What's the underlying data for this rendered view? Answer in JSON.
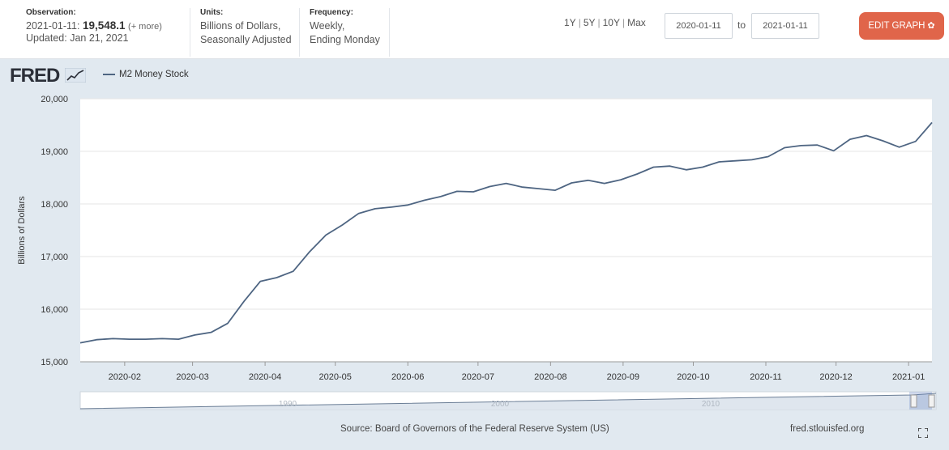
{
  "header": {
    "observation_label": "Observation:",
    "observation_date": "2021-01-11:",
    "observation_value": "19,548.1",
    "observation_more": "(+ more)",
    "updated": "Updated: Jan 21, 2021",
    "units_label": "Units:",
    "units_line1": "Billions of Dollars,",
    "units_line2": "Seasonally Adjusted",
    "frequency_label": "Frequency:",
    "frequency_line1": "Weekly,",
    "frequency_line2": "Ending Monday"
  },
  "range_buttons": [
    "1Y",
    "5Y",
    "10Y",
    "Max"
  ],
  "date_from": "2020-01-11",
  "date_to": "2021-01-11",
  "to_label": "to",
  "edit_button": "EDIT GRAPH",
  "logo_text": "FRED",
  "source": "Source: Board of Governors of the Federal Reserve System (US)",
  "site": "fred.stlouisfed.org",
  "colors": {
    "line": "#4e6582",
    "edit_button": "#e0654a",
    "plot_bg": "#ffffff",
    "page_bg": "#e1e9f0"
  },
  "chart_data": {
    "type": "line",
    "title": "",
    "xlabel": "",
    "ylabel": "Billions of Dollars",
    "ylim": [
      15000,
      20000
    ],
    "xlim": [
      "2020-01-13",
      "2021-01-11"
    ],
    "yticks": [
      "15,000",
      "16,000",
      "17,000",
      "18,000",
      "19,000",
      "20,000"
    ],
    "xticks": [
      {
        "date": "2020-02-01",
        "label": "2020-02"
      },
      {
        "date": "2020-03-01",
        "label": "2020-03"
      },
      {
        "date": "2020-04-01",
        "label": "2020-04"
      },
      {
        "date": "2020-05-01",
        "label": "2020-05"
      },
      {
        "date": "2020-06-01",
        "label": "2020-06"
      },
      {
        "date": "2020-07-01",
        "label": "2020-07"
      },
      {
        "date": "2020-08-01",
        "label": "2020-08"
      },
      {
        "date": "2020-09-01",
        "label": "2020-09"
      },
      {
        "date": "2020-10-01",
        "label": "2020-10"
      },
      {
        "date": "2020-11-01",
        "label": "2020-11"
      },
      {
        "date": "2020-12-01",
        "label": "2020-12"
      },
      {
        "date": "2021-01-01",
        "label": "2021-01"
      }
    ],
    "grid": true,
    "legend": "top-left",
    "series": [
      {
        "name": "M2 Money Stock",
        "x": [
          "2020-01-13",
          "2020-01-20",
          "2020-01-27",
          "2020-02-03",
          "2020-02-10",
          "2020-02-17",
          "2020-02-24",
          "2020-03-02",
          "2020-03-09",
          "2020-03-16",
          "2020-03-23",
          "2020-03-30",
          "2020-04-06",
          "2020-04-13",
          "2020-04-20",
          "2020-04-27",
          "2020-05-04",
          "2020-05-11",
          "2020-05-18",
          "2020-05-25",
          "2020-06-01",
          "2020-06-08",
          "2020-06-15",
          "2020-06-22",
          "2020-06-29",
          "2020-07-06",
          "2020-07-13",
          "2020-07-20",
          "2020-07-27",
          "2020-08-03",
          "2020-08-10",
          "2020-08-17",
          "2020-08-24",
          "2020-08-31",
          "2020-09-07",
          "2020-09-14",
          "2020-09-21",
          "2020-09-28",
          "2020-10-05",
          "2020-10-12",
          "2020-10-19",
          "2020-10-26",
          "2020-11-02",
          "2020-11-09",
          "2020-11-16",
          "2020-11-23",
          "2020-11-30",
          "2020-12-07",
          "2020-12-14",
          "2020-12-21",
          "2020-12-28",
          "2021-01-04",
          "2021-01-11"
        ],
        "values": [
          15360,
          15420,
          15440,
          15430,
          15430,
          15440,
          15430,
          15510,
          15560,
          15730,
          16150,
          16530,
          16600,
          16720,
          17090,
          17410,
          17600,
          17820,
          17910,
          17940,
          17980,
          18070,
          18140,
          18240,
          18230,
          18330,
          18390,
          18320,
          18290,
          18260,
          18400,
          18450,
          18390,
          18460,
          18570,
          18700,
          18720,
          18650,
          18700,
          18800,
          18820,
          18840,
          18900,
          19070,
          19110,
          19120,
          19010,
          19230,
          19300,
          19200,
          19080,
          19190,
          19548.1
        ]
      }
    ],
    "range_selector_labels": [
      "1990",
      "2000",
      "2010"
    ]
  }
}
